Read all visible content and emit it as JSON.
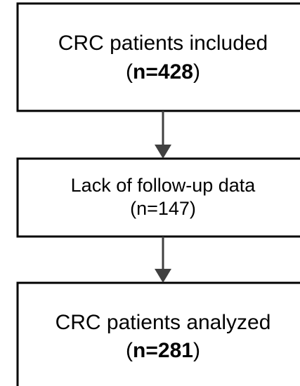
{
  "nodes": [
    {
      "label": "CRC patients included",
      "count": {
        "open": "(",
        "text": "n=428",
        "close": ")"
      }
    },
    {
      "label": "Lack of follow-up data",
      "count": "(n=147)"
    },
    {
      "label": "CRC patients analyzed",
      "count": {
        "open": "(",
        "text": "n=281",
        "close": ")"
      }
    }
  ]
}
